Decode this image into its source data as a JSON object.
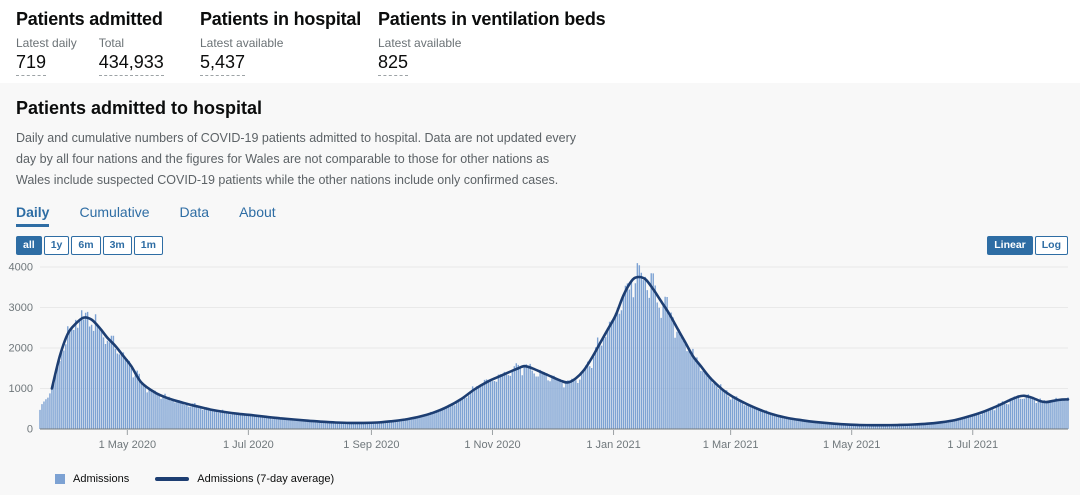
{
  "colors": {
    "accent": "#2e6da4",
    "text": "#0b0c0c",
    "muted_label": "#6b7276",
    "description_text": "#5c6266",
    "card_background": "#f8f8f8",
    "bar": "#7da2d3",
    "average_line": "#1d3e72",
    "gridline": "#e9e9e9",
    "axis_line": "#71787c"
  },
  "summary": {
    "groups": [
      {
        "title": "Patients admitted",
        "metrics": [
          {
            "label": "Latest daily",
            "value": "719"
          },
          {
            "label": "Total",
            "value": "434,933"
          }
        ]
      },
      {
        "title": "Patients in hospital",
        "metrics": [
          {
            "label": "Latest available",
            "value": "5,437"
          }
        ]
      },
      {
        "title": "Patients in ventilation beds",
        "metrics": [
          {
            "label": "Latest available",
            "value": "825"
          }
        ]
      }
    ]
  },
  "card": {
    "title": "Patients admitted to hospital",
    "description": "Daily and cumulative numbers of COVID-19 patients admitted to hospital. Data are not updated every day by all four nations and the figures for Wales are not comparable to those for other nations as Wales include suspected COVID-19 patients while the other nations include only confirmed cases.",
    "tabs": [
      {
        "label": "Daily",
        "active": true
      },
      {
        "label": "Cumulative",
        "active": false
      },
      {
        "label": "Data",
        "active": false
      },
      {
        "label": "About",
        "active": false
      }
    ],
    "range_buttons": [
      {
        "label": "all",
        "active": true
      },
      {
        "label": "1y",
        "active": false
      },
      {
        "label": "6m",
        "active": false
      },
      {
        "label": "3m",
        "active": false
      },
      {
        "label": "1m",
        "active": false
      }
    ],
    "scale_toggle": [
      {
        "label": "Linear",
        "active": true
      },
      {
        "label": "Log",
        "active": false
      }
    ]
  },
  "chart_data": {
    "type": "bar",
    "title": "Patients admitted to hospital (daily)",
    "start_date": "2020-03-18",
    "end_date": "2021-08-18",
    "x_unit": "days since start date",
    "xlabel": "",
    "ylabel": "",
    "ylim": [
      0,
      4200
    ],
    "grid": "horizontal",
    "legend_position": "bottom-left",
    "y_ticks": [
      0,
      1000,
      2000,
      3000,
      4000
    ],
    "x_ticks": [
      {
        "day": 44,
        "label": "1 May 2020"
      },
      {
        "day": 105,
        "label": "1 Jul 2020"
      },
      {
        "day": 167,
        "label": "1 Sep 2020"
      },
      {
        "day": 228,
        "label": "1 Nov 2020"
      },
      {
        "day": 289,
        "label": "1 Jan 2021"
      },
      {
        "day": 348,
        "label": "1 Mar 2021"
      },
      {
        "day": 409,
        "label": "1 May 2021"
      },
      {
        "day": 470,
        "label": "1 Jul 2021"
      }
    ],
    "series": [
      {
        "name": "Admissions",
        "type": "bar",
        "color": "#7da2d3",
        "lead_point": [
          0,
          480
        ]
      },
      {
        "name": "Admissions (7-day average)",
        "type": "line",
        "color": "#1d3e72",
        "points": [
          [
            6,
            1000
          ],
          [
            10,
            1800
          ],
          [
            14,
            2350
          ],
          [
            18,
            2600
          ],
          [
            22,
            2750
          ],
          [
            26,
            2700
          ],
          [
            30,
            2500
          ],
          [
            34,
            2250
          ],
          [
            38,
            2050
          ],
          [
            42,
            1800
          ],
          [
            46,
            1550
          ],
          [
            51,
            1150
          ],
          [
            58,
            900
          ],
          [
            65,
            750
          ],
          [
            72,
            650
          ],
          [
            79,
            560
          ],
          [
            86,
            480
          ],
          [
            93,
            420
          ],
          [
            100,
            375
          ],
          [
            107,
            340
          ],
          [
            114,
            300
          ],
          [
            121,
            265
          ],
          [
            128,
            235
          ],
          [
            135,
            205
          ],
          [
            142,
            180
          ],
          [
            149,
            160
          ],
          [
            156,
            150
          ],
          [
            163,
            150
          ],
          [
            170,
            160
          ],
          [
            177,
            190
          ],
          [
            184,
            235
          ],
          [
            191,
            300
          ],
          [
            198,
            400
          ],
          [
            205,
            540
          ],
          [
            212,
            730
          ],
          [
            219,
            980
          ],
          [
            226,
            1180
          ],
          [
            233,
            1330
          ],
          [
            240,
            1480
          ],
          [
            244,
            1550
          ],
          [
            248,
            1500
          ],
          [
            255,
            1350
          ],
          [
            262,
            1200
          ],
          [
            266,
            1150
          ],
          [
            270,
            1250
          ],
          [
            274,
            1450
          ],
          [
            278,
            1750
          ],
          [
            282,
            2100
          ],
          [
            286,
            2450
          ],
          [
            290,
            2800
          ],
          [
            294,
            3300
          ],
          [
            298,
            3650
          ],
          [
            301,
            3750
          ],
          [
            305,
            3700
          ],
          [
            309,
            3450
          ],
          [
            313,
            3150
          ],
          [
            317,
            2850
          ],
          [
            321,
            2500
          ],
          [
            325,
            2150
          ],
          [
            329,
            1800
          ],
          [
            333,
            1550
          ],
          [
            337,
            1300
          ],
          [
            341,
            1100
          ],
          [
            345,
            930
          ],
          [
            349,
            800
          ],
          [
            356,
            620
          ],
          [
            363,
            470
          ],
          [
            370,
            350
          ],
          [
            377,
            270
          ],
          [
            384,
            215
          ],
          [
            391,
            170
          ],
          [
            398,
            140
          ],
          [
            405,
            115
          ],
          [
            412,
            100
          ],
          [
            419,
            95
          ],
          [
            426,
            95
          ],
          [
            433,
            100
          ],
          [
            440,
            110
          ],
          [
            447,
            130
          ],
          [
            454,
            165
          ],
          [
            461,
            220
          ],
          [
            468,
            310
          ],
          [
            475,
            420
          ],
          [
            482,
            560
          ],
          [
            489,
            720
          ],
          [
            493,
            800
          ],
          [
            496,
            820
          ],
          [
            500,
            770
          ],
          [
            504,
            690
          ],
          [
            507,
            665
          ],
          [
            511,
            700
          ],
          [
            515,
            725
          ],
          [
            518,
            730
          ]
        ]
      }
    ]
  }
}
